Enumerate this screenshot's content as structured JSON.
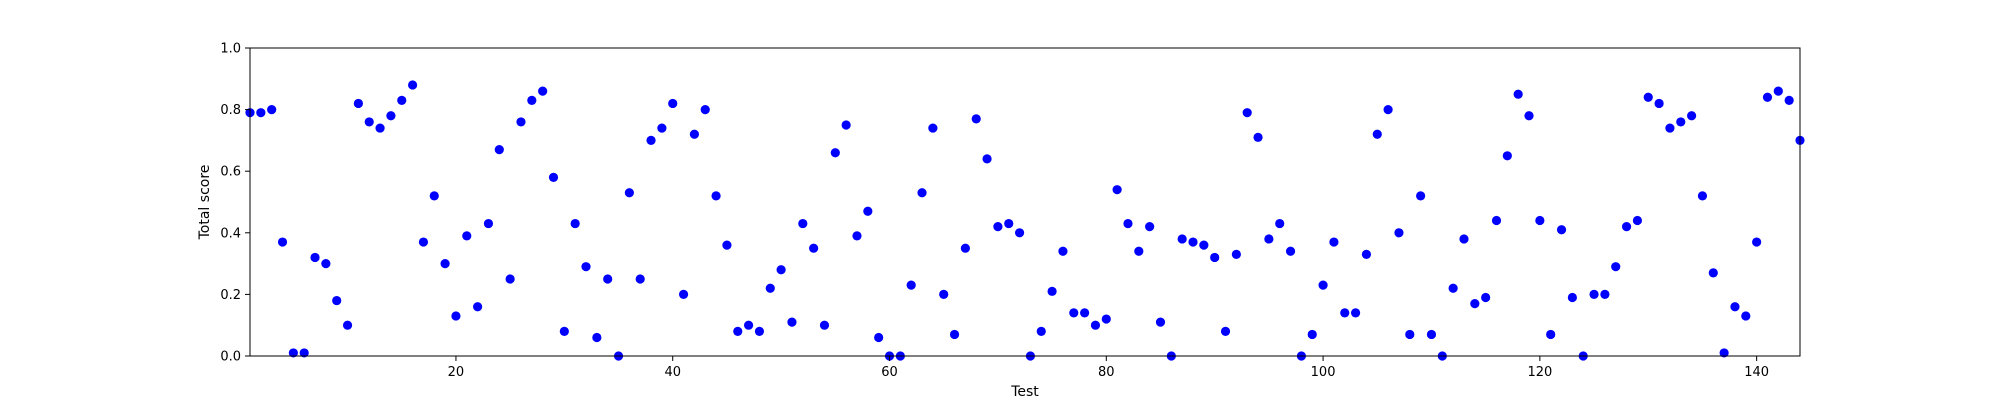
{
  "chart_data": {
    "type": "scatter",
    "xlabel": "Test",
    "ylabel": "Total score",
    "xlim": [
      1,
      144
    ],
    "ylim": [
      0,
      1
    ],
    "xticks": [
      20,
      40,
      60,
      80,
      100,
      120,
      140
    ],
    "yticks": [
      0.0,
      0.2,
      0.4,
      0.6,
      0.8,
      1.0
    ],
    "grid": false,
    "marker_color": "#0000ff",
    "x": [
      1,
      2,
      3,
      4,
      5,
      6,
      7,
      8,
      9,
      10,
      11,
      12,
      13,
      14,
      15,
      16,
      17,
      18,
      19,
      20,
      21,
      22,
      23,
      24,
      25,
      26,
      27,
      28,
      29,
      30,
      31,
      32,
      33,
      34,
      35,
      36,
      37,
      38,
      39,
      40,
      41,
      42,
      43,
      44,
      45,
      46,
      47,
      48,
      49,
      50,
      51,
      52,
      53,
      54,
      55,
      56,
      57,
      58,
      59,
      60,
      61,
      62,
      63,
      64,
      65,
      66,
      67,
      68,
      69,
      70,
      71,
      72,
      73,
      74,
      75,
      76,
      77,
      78,
      79,
      80,
      81,
      82,
      83,
      84,
      85,
      86,
      87,
      88,
      89,
      90,
      91,
      92,
      93,
      94,
      95,
      96,
      97,
      98,
      99,
      100,
      101,
      102,
      103,
      104,
      105,
      106,
      107,
      108,
      109,
      110,
      111,
      112,
      113,
      114,
      115,
      116,
      117,
      118,
      119,
      120,
      121,
      122,
      123,
      124,
      125,
      126,
      127,
      128,
      129,
      130,
      131,
      132,
      133,
      134,
      135,
      136,
      137,
      138,
      139,
      140,
      141,
      142,
      143,
      144
    ],
    "y": [
      0.79,
      0.79,
      0.8,
      0.37,
      0.01,
      0.01,
      0.32,
      0.3,
      0.18,
      0.1,
      0.82,
      0.76,
      0.74,
      0.78,
      0.83,
      0.88,
      0.37,
      0.52,
      0.3,
      0.13,
      0.39,
      0.16,
      0.43,
      0.67,
      0.25,
      0.76,
      0.83,
      0.86,
      0.58,
      0.08,
      0.43,
      0.29,
      0.06,
      0.25,
      0.0,
      0.53,
      0.25,
      0.7,
      0.74,
      0.82,
      0.2,
      0.72,
      0.8,
      0.52,
      0.36,
      0.08,
      0.1,
      0.08,
      0.22,
      0.28,
      0.11,
      0.43,
      0.35,
      0.1,
      0.66,
      0.75,
      0.39,
      0.47,
      0.06,
      0.0,
      0.0,
      0.23,
      0.53,
      0.74,
      0.2,
      0.07,
      0.35,
      0.77,
      0.64,
      0.42,
      0.43,
      0.4,
      0.0,
      0.08,
      0.21,
      0.34,
      0.14,
      0.14,
      0.1,
      0.12,
      0.54,
      0.43,
      0.34,
      0.42,
      0.11,
      0.0,
      0.38,
      0.37,
      0.36,
      0.32,
      0.08,
      0.33,
      0.79,
      0.71,
      0.38,
      0.43,
      0.34,
      0.0,
      0.07,
      0.23,
      0.37,
      0.14,
      0.14,
      0.33,
      0.72,
      0.8,
      0.4,
      0.07,
      0.52,
      0.07,
      0.0,
      0.22,
      0.38,
      0.17,
      0.19,
      0.44,
      0.65,
      0.85,
      0.78,
      0.44,
      0.07,
      0.41,
      0.19,
      0.0,
      0.2,
      0.2,
      0.29,
      0.42,
      0.44,
      0.84,
      0.82,
      0.74,
      0.76,
      0.78,
      0.52,
      0.27,
      0.01,
      0.16,
      0.13,
      0.37,
      0.84,
      0.86,
      0.83,
      0.7
    ]
  }
}
